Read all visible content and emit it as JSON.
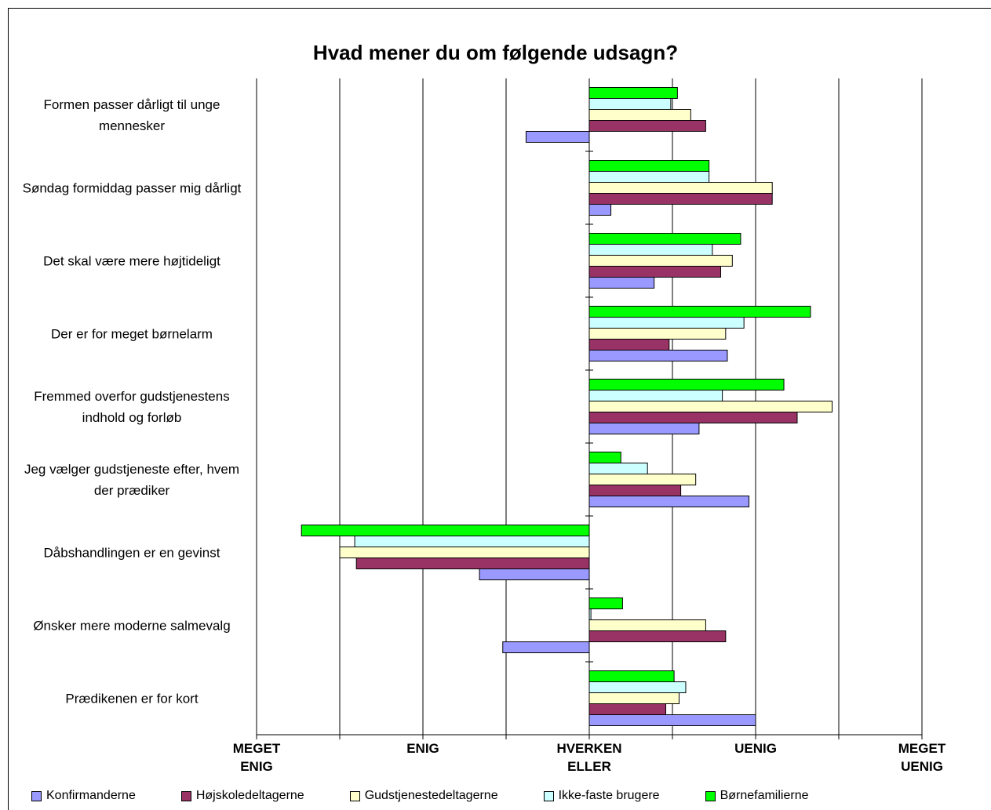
{
  "chart_data": {
    "type": "bar",
    "orientation": "horizontal",
    "title": "Hvad mener du om følgende udsagn?",
    "categories": [
      "Formen passer dårligt til unge mennesker",
      "Søndag formiddag passer mig dårligt",
      "Det skal være mere højtideligt",
      "Der er for meget børnelarm",
      "Fremmed overfor gudstjenestens indhold og forløb",
      "Jeg vælger gudstjeneste efter, hvem der prædiker",
      "Dåbshandlingen er en gevinst",
      "Ønsker mere moderne salmevalg",
      "Prædikenen er for kort"
    ],
    "series": [
      {
        "name": "Konfirmanderne",
        "color": "#9999ff",
        "values": [
          -0.38,
          0.13,
          0.39,
          0.83,
          0.66,
          0.96,
          -0.66,
          -0.52,
          1.0
        ]
      },
      {
        "name": "Højskoledeltagerne",
        "color": "#993366",
        "values": [
          0.7,
          1.1,
          0.79,
          0.48,
          1.25,
          0.55,
          -1.4,
          0.82,
          0.46
        ]
      },
      {
        "name": "Gudstjenestedeltagerne",
        "color": "#ffffcc",
        "values": [
          0.61,
          1.1,
          0.86,
          0.82,
          1.46,
          0.64,
          -1.5,
          0.7,
          0.54
        ]
      },
      {
        "name": "Ikke-faste brugere",
        "color": "#ccffff",
        "values": [
          0.49,
          0.72,
          0.74,
          0.93,
          0.8,
          0.35,
          -1.41,
          0.01,
          0.58
        ]
      },
      {
        "name": "Børnefamilierne",
        "color": "#00ff00",
        "values": [
          0.53,
          0.72,
          0.91,
          1.33,
          1.17,
          0.19,
          -1.73,
          0.2,
          0.51
        ]
      }
    ],
    "xlim": [
      -2,
      2
    ],
    "xticks": [
      {
        "value": -2,
        "label": "MEGET ENIG"
      },
      {
        "value": -1,
        "label": "ENIG"
      },
      {
        "value": 0,
        "label": "HVERKEN ELLER"
      },
      {
        "value": 1,
        "label": "UENIG"
      },
      {
        "value": 2,
        "label": "MEGET UENIG"
      }
    ],
    "xminorticks": [
      -1.5,
      -0.5,
      0.5,
      1.5
    ],
    "grid": true,
    "legend": "bottom"
  }
}
